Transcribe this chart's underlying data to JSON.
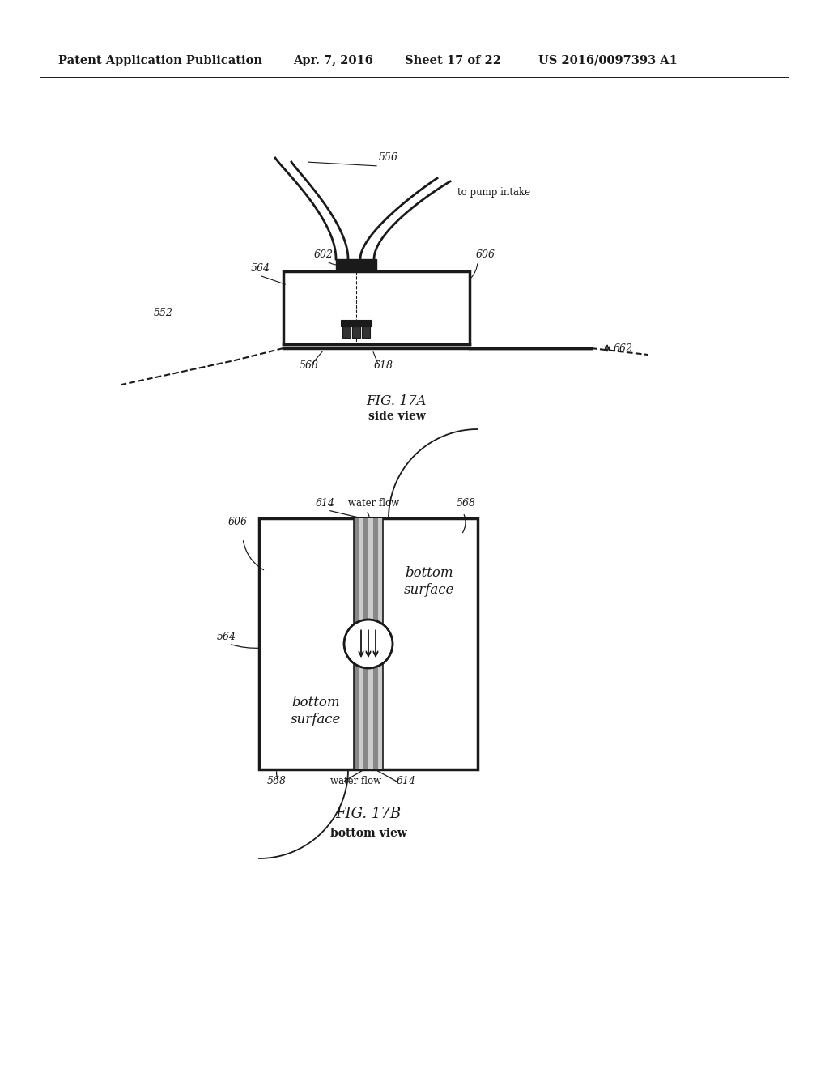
{
  "bg_color": "#ffffff",
  "header_text": "Patent Application Publication",
  "header_date": "Apr. 7, 2016",
  "header_sheet": "Sheet 17 of 22",
  "header_patent": "US 2016/0097393 A1",
  "fig17a_label": "FIG. 17A",
  "fig17a_sub": "side view",
  "fig17b_label": "FIG. 17B",
  "fig17b_sub": "bottom view",
  "line_color": "#1a1a1a",
  "text_color": "#1a1a1a"
}
